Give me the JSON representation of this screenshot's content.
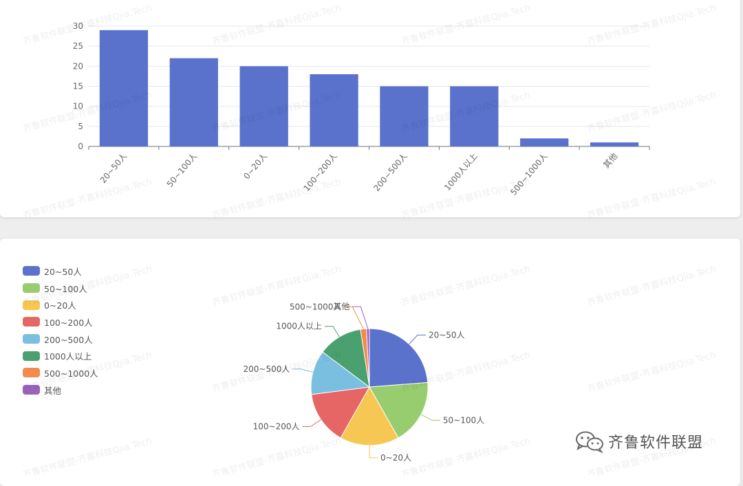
{
  "watermark_text": "齐鲁软件联盟-齐嘉科技Qjia.Tech",
  "brand": {
    "name": "齐鲁软件联盟",
    "icon": "wechat-icon"
  },
  "chart_data": [
    {
      "type": "bar",
      "categories": [
        "20~50人",
        "50~100人",
        "0~20人",
        "100~200人",
        "200~500人",
        "1000人以上",
        "500~1000人",
        "其他"
      ],
      "values": [
        29,
        22,
        20,
        18,
        15,
        15,
        2,
        1
      ],
      "ylim": [
        0,
        30
      ],
      "yticks": [
        0,
        5,
        10,
        15,
        20,
        25,
        30
      ],
      "grid": true,
      "color": "#5a72cc"
    },
    {
      "type": "pie",
      "labels": [
        "20~50人",
        "50~100人",
        "0~20人",
        "100~200人",
        "200~500人",
        "1000人以上",
        "500~1000人",
        "其他"
      ],
      "values": [
        29,
        22,
        20,
        18,
        15,
        15,
        2,
        1
      ],
      "colors": [
        "#5a72cc",
        "#97cc6f",
        "#f6c752",
        "#e66665",
        "#7bbfe0",
        "#4aa06e",
        "#f48a4b",
        "#9a62bb"
      ],
      "legend_position": "top-left"
    }
  ]
}
